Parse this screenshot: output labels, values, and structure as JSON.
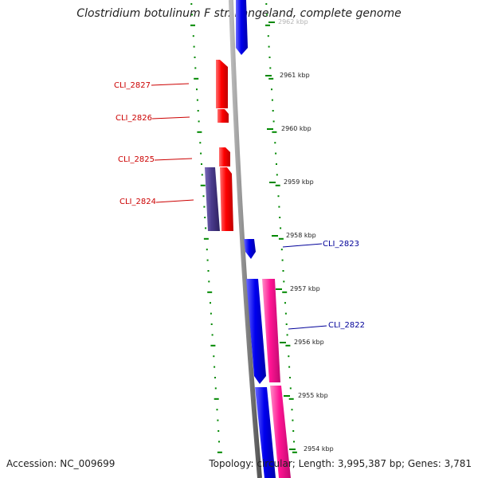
{
  "title": "Clostridium botulinum F str. Langeland, complete genome",
  "footer": {
    "accession": "Accession: NC_009699",
    "topology": "Topology: circular; Length: 3,995,387 bp; Genes: 3,781"
  },
  "colors": {
    "backbone": "#888888",
    "forward_gene": "#0000ee",
    "reverse_gene": "#ff0000",
    "pink_gene": "#ff1493",
    "purple_gene": "#4a3a8c",
    "tick": "#008800",
    "reverse_label": "#cc0000",
    "forward_label": "#000099"
  },
  "kbp_ticks": [
    {
      "label": "2962 kbp"
    },
    {
      "label": "2961 kbp"
    },
    {
      "label": "2960 kbp"
    },
    {
      "label": "2959 kbp"
    },
    {
      "label": "2958 kbp"
    },
    {
      "label": "2957 kbp"
    },
    {
      "label": "2956 kbp"
    },
    {
      "label": "2955 kbp"
    },
    {
      "label": "2954 kbp"
    }
  ],
  "gene_labels": {
    "cli_2827": "CLI_2827",
    "cli_2826": "CLI_2826",
    "cli_2825": "CLI_2825",
    "cli_2824": "CLI_2824",
    "cli_2823": "CLI_2823",
    "cli_2822": "CLI_2822"
  }
}
